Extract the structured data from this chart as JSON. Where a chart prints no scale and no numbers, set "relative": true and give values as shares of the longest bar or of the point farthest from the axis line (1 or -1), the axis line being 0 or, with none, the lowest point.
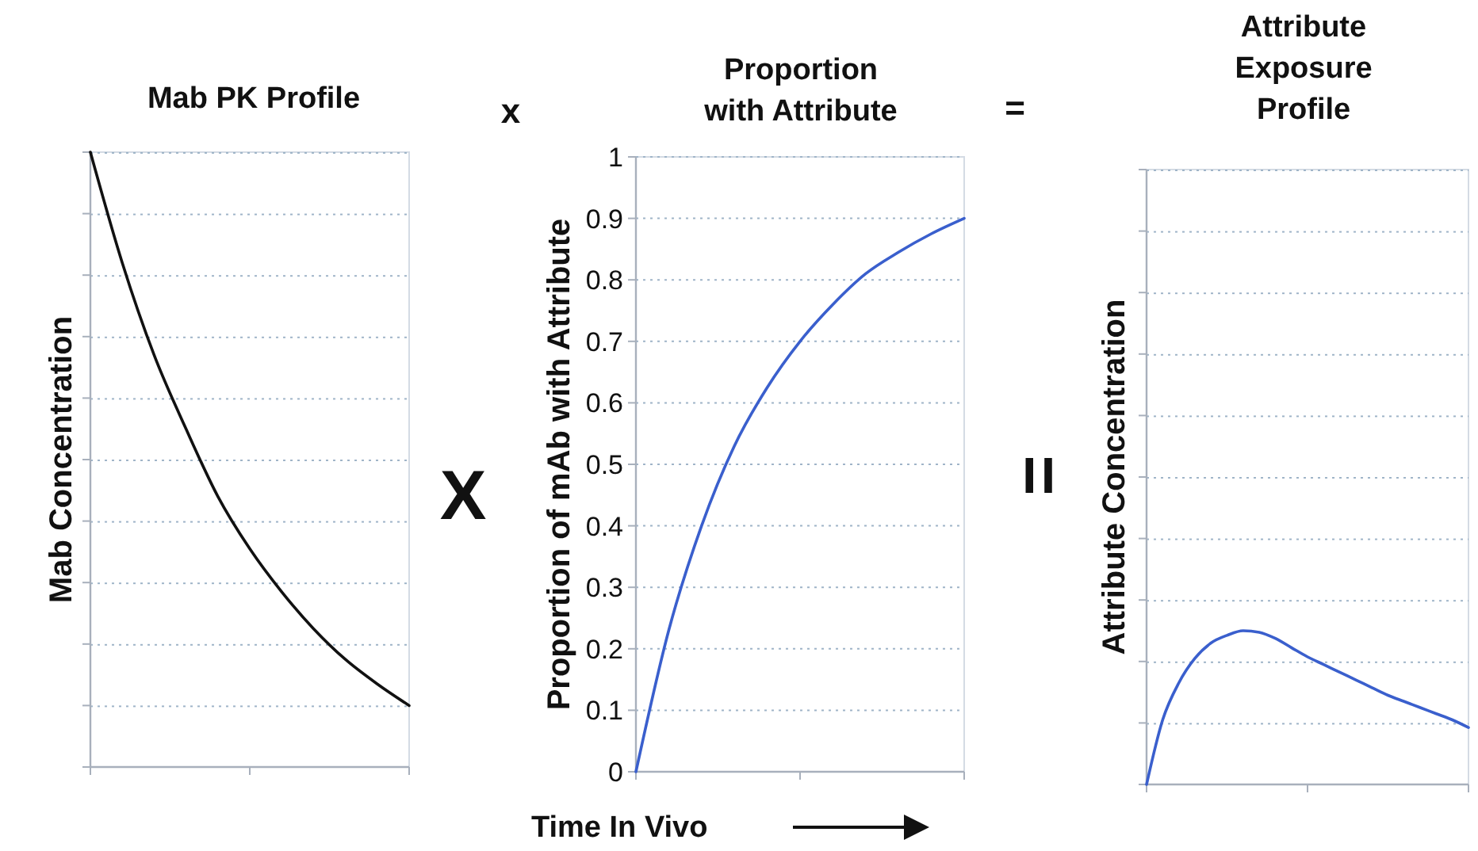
{
  "chart_data": [
    {
      "type": "line",
      "title": "Mab PK Profile",
      "ylabel": "Mab Concentration",
      "relative": true,
      "categories": [
        null,
        null,
        null,
        null,
        null,
        null,
        null,
        null,
        null,
        null,
        null
      ],
      "series": [
        {
          "color": "#111111",
          "values": [
            1.0,
            0.82,
            0.67,
            0.55,
            0.44,
            0.355,
            0.285,
            0.225,
            0.175,
            0.135,
            0.1
          ]
        }
      ],
      "annotations": [
        "x",
        "X"
      ]
    },
    {
      "type": "line",
      "title": "Proportion with Attribute",
      "ylabel": "Proportion of mAb with Attribute",
      "xlabel": "Time In Vivo",
      "grid": "y",
      "categories": [
        null,
        null,
        null,
        null,
        null,
        null,
        null,
        null,
        null,
        null,
        null
      ],
      "ylim": [
        0,
        1
      ],
      "yticks": [
        0,
        0.1,
        0.2,
        0.3,
        0.4,
        0.5,
        0.6,
        0.7,
        0.8,
        0.9,
        1
      ],
      "series": [
        {
          "color": "#3a5fcd",
          "values": [
            0,
            0.23,
            0.4,
            0.53,
            0.625,
            0.7,
            0.76,
            0.81,
            0.845,
            0.875,
            0.9
          ]
        }
      ],
      "annotations": [
        "=",
        "="
      ]
    },
    {
      "type": "line",
      "title": "Attribute Exposure Profile",
      "ylabel": "Attribute Concentration",
      "relative": true,
      "categories": [
        null,
        null,
        null,
        null,
        null,
        null,
        null,
        null,
        null,
        null,
        null,
        null,
        null,
        null,
        null,
        null,
        null,
        null,
        null,
        null,
        null
      ],
      "series": [
        {
          "color": "#3a5fcd",
          "values": [
            0,
            0.42,
            0.66,
            0.82,
            0.92,
            0.97,
            1,
            0.99,
            0.95,
            0.89,
            0.83,
            0.78,
            0.73,
            0.68,
            0.63,
            0.58,
            0.54,
            0.5,
            0.46,
            0.42,
            0.37
          ]
        }
      ]
    }
  ]
}
